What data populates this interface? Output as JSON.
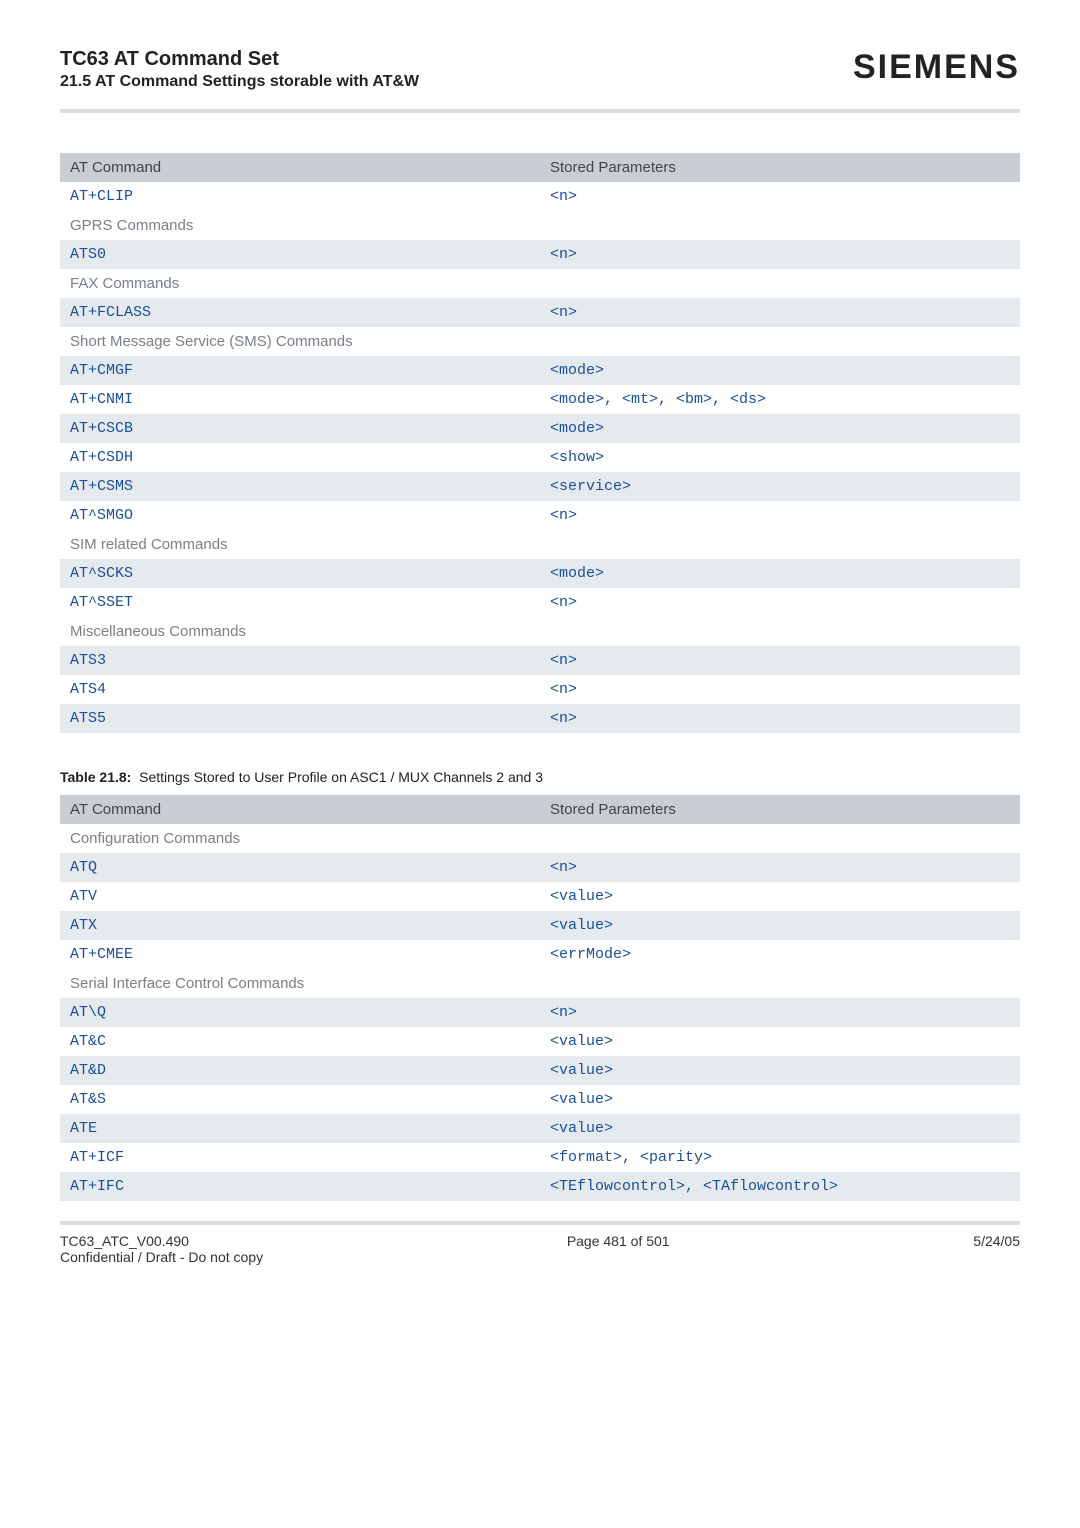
{
  "header": {
    "title": "TC63 AT Command Set",
    "subtitle": "21.5 AT Command Settings storable with AT&W",
    "logo": "SIEMENS"
  },
  "table1": {
    "headers": [
      "AT Command",
      "Stored Parameters"
    ],
    "rows": [
      {
        "type": "data",
        "shade": "white",
        "cmd": "AT+CLIP",
        "param": "<n>"
      },
      {
        "type": "section",
        "label": "GPRS Commands"
      },
      {
        "type": "data",
        "shade": "blue",
        "cmd": "ATS0",
        "param": "<n>"
      },
      {
        "type": "section",
        "label": "FAX Commands"
      },
      {
        "type": "data",
        "shade": "blue",
        "cmd": "AT+FCLASS",
        "param": "<n>"
      },
      {
        "type": "section",
        "label": "Short Message Service (SMS) Commands"
      },
      {
        "type": "data",
        "shade": "blue",
        "cmd": "AT+CMGF",
        "param": "<mode>"
      },
      {
        "type": "data",
        "shade": "white",
        "cmd": "AT+CNMI",
        "param": "<mode>, <mt>, <bm>, <ds>"
      },
      {
        "type": "data",
        "shade": "blue",
        "cmd": "AT+CSCB",
        "param": "<mode>"
      },
      {
        "type": "data",
        "shade": "white",
        "cmd": "AT+CSDH",
        "param": "<show>"
      },
      {
        "type": "data",
        "shade": "blue",
        "cmd": "AT+CSMS",
        "param": "<service>"
      },
      {
        "type": "data",
        "shade": "white",
        "cmd": "AT^SMGO",
        "param": "<n>"
      },
      {
        "type": "section",
        "label": "SIM related Commands"
      },
      {
        "type": "data",
        "shade": "blue",
        "cmd": "AT^SCKS",
        "param": "<mode>"
      },
      {
        "type": "data",
        "shade": "white",
        "cmd": "AT^SSET",
        "param": "<n>"
      },
      {
        "type": "section",
        "label": "Miscellaneous Commands"
      },
      {
        "type": "data",
        "shade": "blue",
        "cmd": "ATS3",
        "param": "<n>"
      },
      {
        "type": "data",
        "shade": "white",
        "cmd": "ATS4",
        "param": "<n>"
      },
      {
        "type": "data",
        "shade": "blue",
        "cmd": "ATS5",
        "param": "<n>"
      }
    ]
  },
  "caption2": {
    "bold": "Table 21.8:",
    "text": "Settings Stored to User Profile on ASC1 / MUX Channels 2 and 3"
  },
  "table2": {
    "headers": [
      "AT Command",
      "Stored Parameters"
    ],
    "rows": [
      {
        "type": "section",
        "label": "Configuration Commands"
      },
      {
        "type": "data",
        "shade": "blue",
        "cmd": "ATQ",
        "param": "<n>"
      },
      {
        "type": "data",
        "shade": "white",
        "cmd": "ATV",
        "param": "<value>"
      },
      {
        "type": "data",
        "shade": "blue",
        "cmd": "ATX",
        "param": "<value>"
      },
      {
        "type": "data",
        "shade": "white",
        "cmd": "AT+CMEE",
        "param": "<errMode>"
      },
      {
        "type": "section",
        "label": "Serial Interface Control Commands"
      },
      {
        "type": "data",
        "shade": "blue",
        "cmd": "AT\\Q",
        "param": "<n>"
      },
      {
        "type": "data",
        "shade": "white",
        "cmd": "AT&C",
        "param": "<value>"
      },
      {
        "type": "data",
        "shade": "blue",
        "cmd": "AT&D",
        "param": "<value>"
      },
      {
        "type": "data",
        "shade": "white",
        "cmd": "AT&S",
        "param": "<value>"
      },
      {
        "type": "data",
        "shade": "blue",
        "cmd": "ATE",
        "param": "<value>"
      },
      {
        "type": "data",
        "shade": "white",
        "cmd": "AT+ICF",
        "param": "<format>, <parity>"
      },
      {
        "type": "data",
        "shade": "blue",
        "cmd": "AT+IFC",
        "param": "<TEflowcontrol>, <TAflowcontrol>"
      }
    ]
  },
  "footer": {
    "left1": "TC63_ATC_V00.490",
    "left2": "Confidential / Draft - Do not copy",
    "center": "Page 481 of 501",
    "right": "5/24/05"
  }
}
